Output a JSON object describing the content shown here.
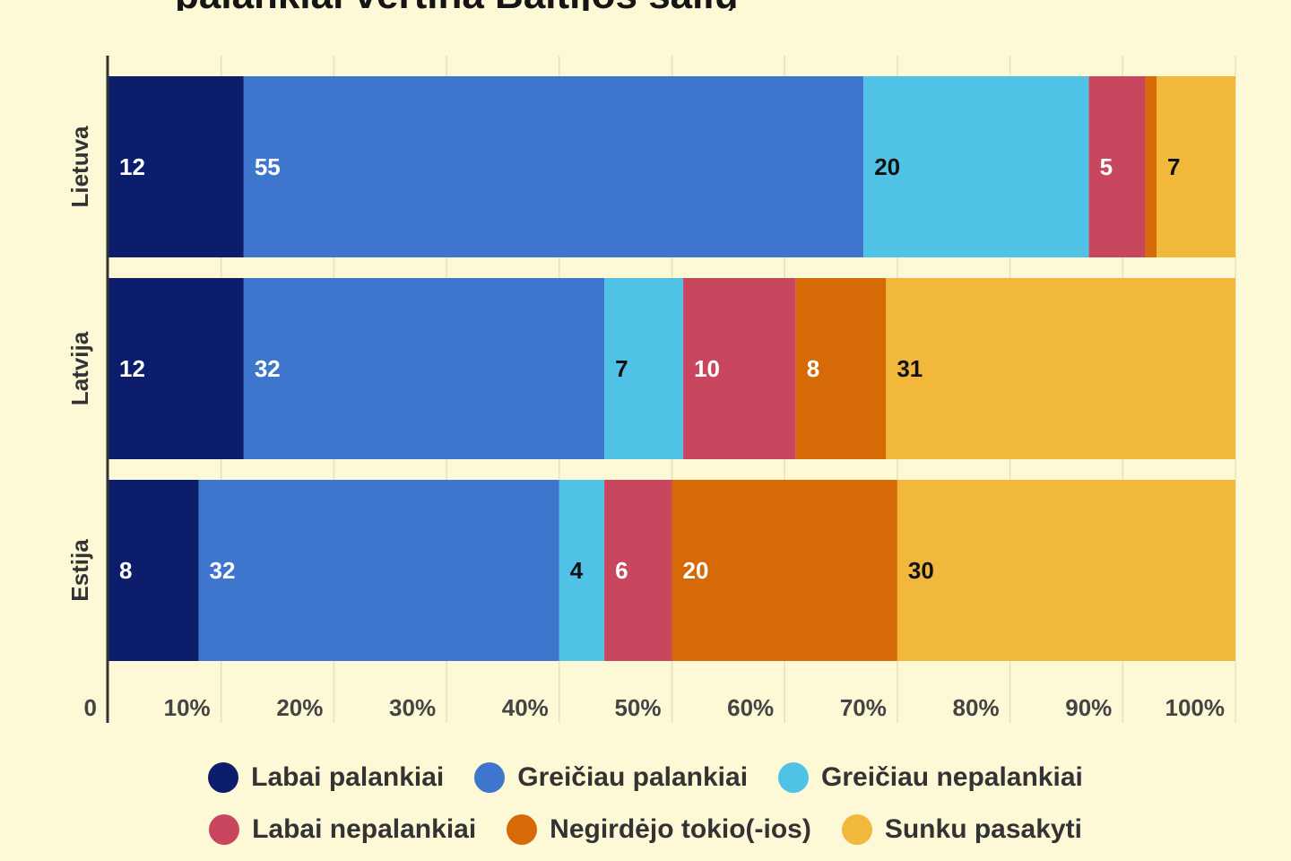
{
  "title_fragment": "palankiai vertina Baltijos šalių",
  "chart_data": {
    "type": "bar",
    "orientation": "horizontal",
    "stacked": true,
    "title": "",
    "xlabel": "",
    "ylabel": "",
    "xlim": [
      0,
      100
    ],
    "categories": [
      "Lietuva",
      "Latvija",
      "Estija"
    ],
    "x_ticks": [
      "0",
      "10%",
      "20%",
      "30%",
      "40%",
      "50%",
      "60%",
      "70%",
      "80%",
      "90%",
      "100%"
    ],
    "series": [
      {
        "name": "Labai palankiai",
        "color": "#0b1d6b",
        "label_color": "#ffffff",
        "values": [
          12,
          12,
          8
        ]
      },
      {
        "name": "Greičiau palankiai",
        "color": "#3d76cc",
        "label_color": "#ffffff",
        "values": [
          55,
          32,
          32
        ]
      },
      {
        "name": "Greičiau nepalankiai",
        "color": "#4fc2e6",
        "label_color": "#111111",
        "values": [
          20,
          7,
          4
        ]
      },
      {
        "name": "Labai nepalankiai",
        "color": "#c9465f",
        "label_color": "#ffffff",
        "values": [
          5,
          10,
          6
        ]
      },
      {
        "name": "Negirdėjo tokio(-ios)",
        "color": "#d66a06",
        "label_color": "#ffffff",
        "values": [
          1,
          8,
          20
        ]
      },
      {
        "name": "Sunku pasakyti",
        "color": "#f2b83c",
        "label_color": "#111111",
        "values": [
          7,
          31,
          30
        ]
      }
    ],
    "legend_position": "bottom",
    "grid": true
  }
}
